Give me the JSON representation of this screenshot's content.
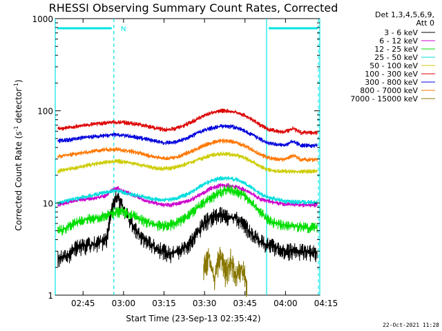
{
  "chart_data": {
    "type": "line",
    "title": "RHESSI Observing Summary Count Rates, Corrected",
    "xlabel": "Start Time (23-Sep-13 02:35:42)",
    "ylabel": "Corrected Count Rate (s⁻¹ detector⁻¹)",
    "ylabel_main": "Corrected Count Rate (s",
    "ylabel_sup1": "-1",
    "ylabel_mid": " detector",
    "ylabel_sup2": "-1",
    "ylabel_end": ")",
    "yscale": "log",
    "ylim": [
      1,
      1000
    ],
    "y_ticks": [
      "1",
      "10",
      "100",
      "1000"
    ],
    "xlim_minutes": [
      -1.0,
      97.0
    ],
    "x_ticks": [
      {
        "minutes": 9.3,
        "label": "02:45"
      },
      {
        "minutes": 24.3,
        "label": "03:00"
      },
      {
        "minutes": 39.3,
        "label": "03:15"
      },
      {
        "minutes": 54.3,
        "label": "03:30"
      },
      {
        "minutes": 69.3,
        "label": "03:45"
      },
      {
        "minutes": 84.3,
        "label": "04:00"
      },
      {
        "minutes": 99.3,
        "label": "04:15"
      }
    ],
    "legend_header": [
      "Det 1,3,4,5,6,9,",
      "Att 0"
    ],
    "series": [
      {
        "name": "3 - 6 keV",
        "color": "#000000",
        "points": [
          [
            0,
            2.5
          ],
          [
            3,
            2.6
          ],
          [
            6,
            3.2
          ],
          [
            9,
            3.4
          ],
          [
            12,
            3.5
          ],
          [
            15,
            3.7
          ],
          [
            18,
            4.0
          ],
          [
            20,
            9
          ],
          [
            22,
            12
          ],
          [
            24,
            9
          ],
          [
            26,
            7
          ],
          [
            28,
            5.5
          ],
          [
            30,
            4.5
          ],
          [
            33,
            3.8
          ],
          [
            36,
            3.3
          ],
          [
            39,
            3.0
          ],
          [
            42,
            2.8
          ],
          [
            45,
            3.0
          ],
          [
            48,
            3.5
          ],
          [
            51,
            4.5
          ],
          [
            54,
            6
          ],
          [
            57,
            7
          ],
          [
            60,
            7.5
          ],
          [
            63,
            7.2
          ],
          [
            66,
            6.8
          ],
          [
            69,
            5.8
          ],
          [
            72,
            4.5
          ],
          [
            75,
            3.8
          ],
          [
            78,
            3.5
          ],
          [
            81,
            3.3
          ],
          [
            84,
            3.0
          ],
          [
            87,
            3.0
          ],
          [
            90,
            3.0
          ],
          [
            93,
            2.9
          ],
          [
            96,
            2.9
          ]
        ]
      },
      {
        "name": "6 - 12 keV",
        "color": "#cc00cc",
        "points": [
          [
            0,
            9.5
          ],
          [
            3,
            10
          ],
          [
            6,
            10.5
          ],
          [
            9,
            11
          ],
          [
            12,
            11
          ],
          [
            15,
            11.5
          ],
          [
            18,
            12
          ],
          [
            20,
            14
          ],
          [
            22,
            14.5
          ],
          [
            24,
            13.5
          ],
          [
            27,
            12.5
          ],
          [
            30,
            11.5
          ],
          [
            33,
            10.5
          ],
          [
            36,
            10
          ],
          [
            39,
            9.5
          ],
          [
            42,
            9.5
          ],
          [
            45,
            10
          ],
          [
            48,
            10.5
          ],
          [
            51,
            11.5
          ],
          [
            54,
            13
          ],
          [
            57,
            14.5
          ],
          [
            60,
            15.5
          ],
          [
            63,
            15.5
          ],
          [
            66,
            15
          ],
          [
            69,
            14
          ],
          [
            72,
            12.5
          ],
          [
            75,
            11
          ],
          [
            78,
            10.5
          ],
          [
            81,
            10
          ],
          [
            84,
            9.8
          ],
          [
            87,
            9.6
          ],
          [
            90,
            9.5
          ],
          [
            93,
            9.5
          ],
          [
            96,
            9.5
          ]
        ]
      },
      {
        "name": "12 - 25 keV",
        "color": "#00dd00",
        "points": [
          [
            0,
            5
          ],
          [
            3,
            5.3
          ],
          [
            6,
            6
          ],
          [
            9,
            6.5
          ],
          [
            12,
            6.8
          ],
          [
            15,
            7
          ],
          [
            18,
            7.5
          ],
          [
            20,
            7.8
          ],
          [
            22,
            8
          ],
          [
            24,
            8
          ],
          [
            27,
            7.5
          ],
          [
            30,
            6.8
          ],
          [
            33,
            6.2
          ],
          [
            36,
            5.8
          ],
          [
            39,
            5.6
          ],
          [
            42,
            5.8
          ],
          [
            45,
            6.3
          ],
          [
            48,
            7.2
          ],
          [
            51,
            8.5
          ],
          [
            54,
            10
          ],
          [
            57,
            11.5
          ],
          [
            60,
            13
          ],
          [
            63,
            14
          ],
          [
            66,
            13.5
          ],
          [
            69,
            12
          ],
          [
            72,
            10
          ],
          [
            75,
            8
          ],
          [
            78,
            6.5
          ],
          [
            81,
            6
          ],
          [
            84,
            5.8
          ],
          [
            87,
            5.6
          ],
          [
            90,
            5.5
          ],
          [
            93,
            5.4
          ],
          [
            96,
            5.4
          ]
        ]
      },
      {
        "name": "25 - 50 keV",
        "color": "#00dddd",
        "points": [
          [
            0,
            10
          ],
          [
            3,
            10.5
          ],
          [
            6,
            11
          ],
          [
            9,
            11.5
          ],
          [
            12,
            12
          ],
          [
            15,
            12.5
          ],
          [
            18,
            13
          ],
          [
            20,
            13.5
          ],
          [
            22,
            13.5
          ],
          [
            24,
            13
          ],
          [
            27,
            12.5
          ],
          [
            30,
            12
          ],
          [
            33,
            11.5
          ],
          [
            36,
            11
          ],
          [
            39,
            10.8
          ],
          [
            42,
            11
          ],
          [
            45,
            11.5
          ],
          [
            48,
            12.5
          ],
          [
            51,
            14
          ],
          [
            54,
            16
          ],
          [
            57,
            17.5
          ],
          [
            60,
            18.5
          ],
          [
            63,
            18.5
          ],
          [
            66,
            18
          ],
          [
            69,
            16.5
          ],
          [
            72,
            14.5
          ],
          [
            75,
            12.5
          ],
          [
            78,
            11.5
          ],
          [
            81,
            11
          ],
          [
            84,
            10.5
          ],
          [
            87,
            10.3
          ],
          [
            90,
            10.2
          ],
          [
            93,
            10.2
          ],
          [
            96,
            10.2
          ]
        ]
      },
      {
        "name": "50 - 100 keV",
        "color": "#cccc00",
        "points": [
          [
            0,
            22
          ],
          [
            3,
            23
          ],
          [
            6,
            24
          ],
          [
            9,
            25
          ],
          [
            12,
            26
          ],
          [
            15,
            27
          ],
          [
            18,
            28
          ],
          [
            20,
            28
          ],
          [
            22,
            28.5
          ],
          [
            24,
            28
          ],
          [
            27,
            27
          ],
          [
            30,
            26
          ],
          [
            33,
            25
          ],
          [
            36,
            24
          ],
          [
            39,
            23.5
          ],
          [
            42,
            24
          ],
          [
            45,
            25
          ],
          [
            48,
            27
          ],
          [
            51,
            29
          ],
          [
            54,
            31
          ],
          [
            57,
            33
          ],
          [
            60,
            34
          ],
          [
            63,
            34
          ],
          [
            66,
            33
          ],
          [
            69,
            31
          ],
          [
            72,
            28
          ],
          [
            75,
            25
          ],
          [
            78,
            23
          ],
          [
            81,
            22
          ],
          [
            84,
            22
          ],
          [
            87,
            22
          ],
          [
            90,
            22
          ],
          [
            93,
            22
          ],
          [
            96,
            22
          ]
        ]
      },
      {
        "name": "100 - 300 keV",
        "color": "#dd0000",
        "points": [
          [
            0,
            64
          ],
          [
            3,
            65
          ],
          [
            6,
            67
          ],
          [
            9,
            69
          ],
          [
            12,
            71
          ],
          [
            15,
            73
          ],
          [
            18,
            74
          ],
          [
            20,
            75
          ],
          [
            22,
            75
          ],
          [
            24,
            75
          ],
          [
            27,
            73
          ],
          [
            30,
            71
          ],
          [
            33,
            68
          ],
          [
            36,
            65
          ],
          [
            39,
            63
          ],
          [
            42,
            63
          ],
          [
            45,
            66
          ],
          [
            48,
            72
          ],
          [
            51,
            80
          ],
          [
            54,
            88
          ],
          [
            57,
            95
          ],
          [
            60,
            100
          ],
          [
            63,
            100
          ],
          [
            66,
            97
          ],
          [
            69,
            90
          ],
          [
            72,
            80
          ],
          [
            75,
            70
          ],
          [
            78,
            63
          ],
          [
            81,
            60
          ],
          [
            84,
            59
          ],
          [
            87,
            64
          ],
          [
            90,
            58
          ],
          [
            93,
            58
          ],
          [
            96,
            58
          ]
        ]
      },
      {
        "name": "300 - 800 keV",
        "color": "#0000dd",
        "points": [
          [
            0,
            47
          ],
          [
            3,
            48
          ],
          [
            6,
            49
          ],
          [
            9,
            51
          ],
          [
            12,
            52
          ],
          [
            15,
            53
          ],
          [
            18,
            54
          ],
          [
            20,
            55
          ],
          [
            22,
            55
          ],
          [
            24,
            54
          ],
          [
            27,
            53
          ],
          [
            30,
            51
          ],
          [
            33,
            49
          ],
          [
            36,
            47
          ],
          [
            39,
            45
          ],
          [
            42,
            45
          ],
          [
            45,
            47
          ],
          [
            48,
            51
          ],
          [
            51,
            56
          ],
          [
            54,
            61
          ],
          [
            57,
            65
          ],
          [
            60,
            68
          ],
          [
            63,
            68
          ],
          [
            66,
            66
          ],
          [
            69,
            61
          ],
          [
            72,
            55
          ],
          [
            75,
            49
          ],
          [
            78,
            45
          ],
          [
            81,
            43
          ],
          [
            84,
            42
          ],
          [
            87,
            47
          ],
          [
            90,
            42
          ],
          [
            93,
            42
          ],
          [
            96,
            42
          ]
        ]
      },
      {
        "name": "800 - 7000 keV",
        "color": "#ff7700",
        "points": [
          [
            0,
            32
          ],
          [
            3,
            33
          ],
          [
            6,
            34
          ],
          [
            9,
            35
          ],
          [
            12,
            36
          ],
          [
            15,
            37
          ],
          [
            18,
            38
          ],
          [
            20,
            38
          ],
          [
            22,
            38
          ],
          [
            24,
            37.5
          ],
          [
            27,
            36.5
          ],
          [
            30,
            35
          ],
          [
            33,
            33
          ],
          [
            36,
            31.5
          ],
          [
            39,
            30.5
          ],
          [
            42,
            30.5
          ],
          [
            45,
            32
          ],
          [
            48,
            35
          ],
          [
            51,
            38
          ],
          [
            54,
            42
          ],
          [
            57,
            45
          ],
          [
            60,
            47
          ],
          [
            63,
            47
          ],
          [
            66,
            45.5
          ],
          [
            69,
            42
          ],
          [
            72,
            37.5
          ],
          [
            75,
            33.5
          ],
          [
            78,
            31
          ],
          [
            81,
            30
          ],
          [
            84,
            29.5
          ],
          [
            87,
            33
          ],
          [
            90,
            29.5
          ],
          [
            93,
            29.5
          ],
          [
            96,
            29.5
          ]
        ]
      },
      {
        "name": "7000 - 15000 keV",
        "color": "#887700",
        "points": [
          [
            54,
            2.0
          ],
          [
            56,
            2.6
          ],
          [
            58,
            1.5
          ],
          [
            60,
            2.8
          ],
          [
            62,
            1.8
          ],
          [
            64,
            2.4
          ],
          [
            66,
            1.6
          ],
          [
            68,
            2.0
          ],
          [
            70,
            1.4
          ]
        ]
      }
    ],
    "attenuator_shading_minutes": [
      [
        -1,
        20.7
      ],
      [
        77.3,
        97
      ]
    ],
    "night_marker": "N",
    "night_marker_minutes": 22.3,
    "timestamp": "22-Oct-2021 11:28"
  }
}
